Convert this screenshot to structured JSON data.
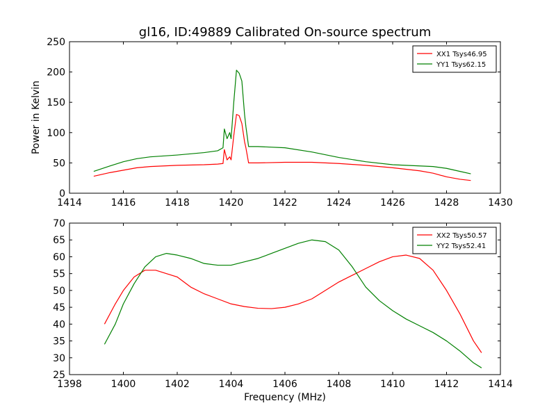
{
  "figure": {
    "title": "gl16, ID:49889 Calibrated On-source spectrum",
    "xlabel": "Frequency (MHz)",
    "ylabel_top": "Power in Kelvin"
  },
  "chart_data": [
    {
      "type": "line",
      "title": "gl16, ID:49889 Calibrated On-source spectrum",
      "xlabel": "",
      "ylabel": "Power in Kelvin",
      "xlim": [
        1414,
        1430
      ],
      "ylim": [
        0,
        250
      ],
      "xticks": [
        1414,
        1416,
        1418,
        1420,
        1422,
        1424,
        1426,
        1428,
        1430
      ],
      "yticks": [
        0,
        50,
        100,
        150,
        200,
        250
      ],
      "grid": false,
      "legend": "top-right",
      "series": [
        {
          "name": "XX1 Tsys46.95",
          "color": "#ff0000",
          "x": [
            1414.9,
            1415.5,
            1416.0,
            1416.5,
            1417.0,
            1418.0,
            1419.0,
            1419.5,
            1419.7,
            1419.75,
            1419.85,
            1419.95,
            1420.0,
            1420.1,
            1420.2,
            1420.3,
            1420.4,
            1420.5,
            1420.55,
            1420.65,
            1421.0,
            1422.0,
            1423.0,
            1424.0,
            1425.0,
            1426.0,
            1427.0,
            1427.5,
            1428.0,
            1428.5,
            1428.9
          ],
          "y": [
            28,
            34,
            38,
            42,
            44,
            46,
            47,
            48,
            49,
            72,
            55,
            60,
            55,
            95,
            130,
            128,
            115,
            85,
            75,
            50,
            50,
            51,
            51,
            49,
            46,
            42,
            37,
            33,
            27,
            23,
            21
          ]
        },
        {
          "name": "YY1 Tsys62.15",
          "color": "#008000",
          "x": [
            1414.9,
            1415.5,
            1416.0,
            1416.5,
            1417.0,
            1418.0,
            1419.0,
            1419.5,
            1419.7,
            1419.75,
            1419.85,
            1419.95,
            1420.0,
            1420.1,
            1420.2,
            1420.3,
            1420.4,
            1420.5,
            1420.55,
            1420.65,
            1421.0,
            1422.0,
            1423.0,
            1424.0,
            1425.0,
            1426.0,
            1427.0,
            1427.5,
            1428.0,
            1428.5,
            1428.9
          ],
          "y": [
            36,
            45,
            52,
            57,
            60,
            63,
            67,
            70,
            75,
            106,
            90,
            100,
            90,
            150,
            203,
            198,
            185,
            130,
            110,
            77,
            77,
            75,
            68,
            59,
            52,
            47,
            45,
            44,
            41,
            36,
            32
          ]
        }
      ]
    },
    {
      "type": "line",
      "title": "",
      "xlabel": "Frequency (MHz)",
      "ylabel": "",
      "xlim": [
        1398,
        1414
      ],
      "ylim": [
        25,
        70
      ],
      "xticks": [
        1398,
        1400,
        1402,
        1404,
        1406,
        1408,
        1410,
        1412,
        1414
      ],
      "yticks": [
        25,
        30,
        35,
        40,
        45,
        50,
        55,
        60,
        65,
        70
      ],
      "grid": false,
      "legend": "top-right",
      "series": [
        {
          "name": "XX2 Tsys50.57",
          "color": "#ff0000",
          "x": [
            1399.3,
            1399.7,
            1400.0,
            1400.4,
            1400.8,
            1401.2,
            1401.6,
            1402.0,
            1402.5,
            1403.0,
            1403.5,
            1404.0,
            1404.5,
            1405.0,
            1405.5,
            1406.0,
            1406.5,
            1407.0,
            1407.5,
            1408.0,
            1408.5,
            1409.0,
            1409.5,
            1410.0,
            1410.5,
            1411.0,
            1411.5,
            1412.0,
            1412.5,
            1413.0,
            1413.3
          ],
          "y": [
            40,
            46,
            50,
            54,
            56,
            56,
            55,
            54,
            51,
            49,
            47.5,
            46,
            45.2,
            44.7,
            44.6,
            45,
            46,
            47.5,
            50,
            52.5,
            54.5,
            56.5,
            58.5,
            60,
            60.5,
            59.5,
            56,
            50,
            43,
            35,
            31.5
          ]
        },
        {
          "name": "YY2 Tsys52.41",
          "color": "#008000",
          "x": [
            1399.3,
            1399.7,
            1400.0,
            1400.4,
            1400.8,
            1401.2,
            1401.6,
            1402.0,
            1402.5,
            1403.0,
            1403.5,
            1404.0,
            1404.5,
            1405.0,
            1405.5,
            1406.0,
            1406.5,
            1407.0,
            1407.5,
            1408.0,
            1408.5,
            1409.0,
            1409.5,
            1410.0,
            1410.5,
            1411.0,
            1411.5,
            1412.0,
            1412.5,
            1413.0,
            1413.3
          ],
          "y": [
            34,
            40,
            46,
            52,
            57,
            60,
            61,
            60.5,
            59.5,
            58,
            57.5,
            57.5,
            58.5,
            59.5,
            61,
            62.5,
            64,
            65,
            64.5,
            62,
            57,
            51,
            47,
            44,
            41.5,
            39.5,
            37.5,
            35,
            32,
            28.5,
            27
          ]
        }
      ]
    }
  ]
}
